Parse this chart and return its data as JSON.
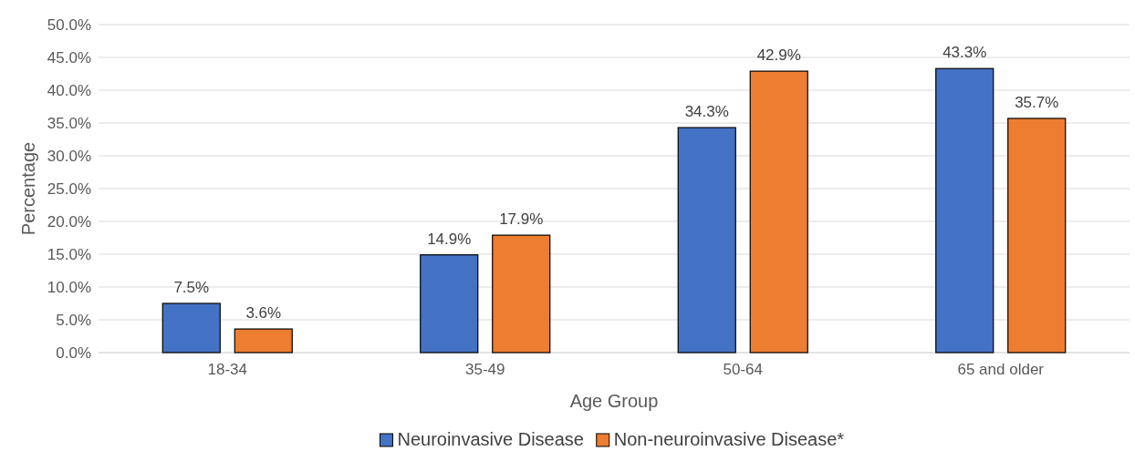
{
  "chart_data": {
    "type": "bar",
    "xlabel": "Age Group",
    "ylabel": "Percentage",
    "categories": [
      "18-34",
      "35-49",
      "50-64",
      "65 and older"
    ],
    "series": [
      {
        "name": "Neuroinvasive Disease",
        "color": "#4472c4",
        "values": [
          7.5,
          14.9,
          34.3,
          43.3
        ],
        "value_labels": [
          "7.5%",
          "14.9%",
          "34.3%",
          "43.3%"
        ]
      },
      {
        "name": "Non-neuroinvasive Disease*",
        "color": "#ed7d31",
        "values": [
          3.6,
          17.9,
          42.9,
          35.7
        ],
        "value_labels": [
          "3.6%",
          "17.9%",
          "42.9%",
          "35.7%"
        ]
      }
    ],
    "ylim": [
      0,
      50
    ],
    "yticks": [
      {
        "value": 0,
        "label": "0.0%"
      },
      {
        "value": 5,
        "label": "5.0%"
      },
      {
        "value": 10,
        "label": "10.0%"
      },
      {
        "value": 15,
        "label": "15.0%"
      },
      {
        "value": 20,
        "label": "20.0%"
      },
      {
        "value": 25,
        "label": "25.0%"
      },
      {
        "value": 30,
        "label": "30.0%"
      },
      {
        "value": 35,
        "label": "35.0%"
      },
      {
        "value": 40,
        "label": "40.0%"
      },
      {
        "value": 45,
        "label": "45.0%"
      },
      {
        "value": 50,
        "label": "50.0%"
      }
    ],
    "grid": "y",
    "legend": "bottom"
  }
}
